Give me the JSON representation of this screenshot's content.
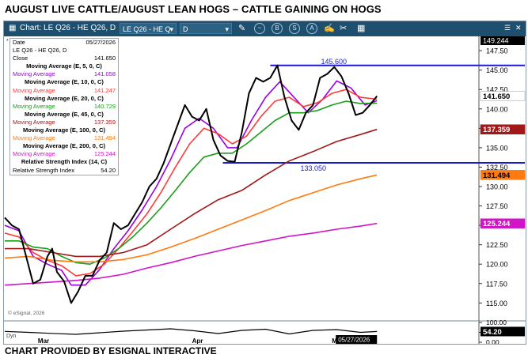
{
  "title": "AUGUST LIVE CATTLE/AUGUST LEAN HOGS –  CATTLE GAINING ON HOGS",
  "footer": "CHART PROVIDED BY ESIGNAL INTERACTIVE",
  "toolbar": {
    "chart_label": "Chart: LE Q26 - HE Q26, D",
    "symbol_value": "LE Q26 - HE Q",
    "interval_value": "D",
    "icons": [
      "pencil-icon",
      "wave-icon",
      "b-icon",
      "s-icon",
      "a-icon",
      "doc-edit-icon",
      "scissors-icon",
      "grid-icon"
    ]
  },
  "legend": {
    "date_label": "Date",
    "date_value": "05/27/2026",
    "symbol": "LE Q26 - HE Q26, D",
    "close_label": "Close",
    "close_value": "141.650",
    "rows": [
      {
        "head": "Moving Average (E, 5, 0, C)",
        "label": "Moving Average",
        "value": "141.058",
        "color": "#9b00e0"
      },
      {
        "head": "Moving Average (E, 10, 0, C)",
        "label": "Moving Average",
        "value": "141.247",
        "color": "#ff3a3a"
      },
      {
        "head": "Moving Average (E, 20, 0, C)",
        "label": "Moving Average",
        "value": "140.729",
        "color": "#1a9e1a"
      },
      {
        "head": "Moving Average (E, 45, 0, C)",
        "label": "Moving Average",
        "value": "137.359",
        "color": "#a01818"
      },
      {
        "head": "Moving Average (E, 100, 0, C)",
        "label": "Moving Average",
        "value": "131.494",
        "color": "#ff7a10"
      },
      {
        "head": "Moving Average (E, 200, 0, C)",
        "label": "Moving Average",
        "value": "125.244",
        "color": "#d214c8"
      }
    ],
    "rsi_head": "Relative Strength Index (14, C)",
    "rsi_label": "Relative Strength Index",
    "rsi_value": "54.20"
  },
  "partial_label": "10)",
  "watermark": "© eSignal, 2026",
  "lower_panel_label": "Dyn",
  "chart_data": {
    "type": "line",
    "x_labels": [
      "Mar",
      "Apr",
      "May"
    ],
    "date_badge": "05/27/2026",
    "ylim": [
      113.2,
      149.244
    ],
    "y_ticks": [
      115.0,
      117.5,
      120.0,
      122.5,
      125.0,
      127.5,
      130.0,
      132.5,
      135.0,
      137.5,
      140.0,
      142.5,
      145.0,
      147.5
    ],
    "y_tick_labels": [
      "115.00",
      "117.50",
      "120.00",
      "122.50",
      "125.00",
      "127.50",
      "130.00",
      "132.50",
      "135.00",
      "137.50",
      "140.00",
      "142.50",
      "145.00",
      "147.50"
    ],
    "top_value_label": "149.244",
    "price_labels": [
      {
        "text": "141.650",
        "value": 141.65,
        "bg": "#ffffff",
        "fg": "#000000"
      },
      {
        "text": "137.359",
        "value": 137.359,
        "bg": "#a01818",
        "fg": "#ffffff"
      },
      {
        "text": "131.494",
        "value": 131.494,
        "bg": "#ff7a10",
        "fg": "#000000"
      },
      {
        "text": "125.244",
        "value": 125.244,
        "bg": "#d214c8",
        "fg": "#ffffff"
      }
    ],
    "levels": [
      {
        "label": "145.600",
        "value": 145.6,
        "x_start": 0.56,
        "x_end": 1.0
      },
      {
        "label": "133.050",
        "value": 133.05,
        "x_start": 0.46,
        "x_end": 1.0
      }
    ],
    "series": [
      {
        "name": "Close",
        "color": "#000000",
        "width": 2,
        "values": [
          [
            0,
            126
          ],
          [
            0.015,
            125
          ],
          [
            0.03,
            124.5
          ],
          [
            0.045,
            121
          ],
          [
            0.06,
            117.5
          ],
          [
            0.075,
            118
          ],
          [
            0.09,
            121
          ],
          [
            0.1,
            122
          ],
          [
            0.11,
            119
          ],
          [
            0.125,
            117.8
          ],
          [
            0.14,
            115
          ],
          [
            0.155,
            116.5
          ],
          [
            0.17,
            118.5
          ],
          [
            0.185,
            118.5
          ],
          [
            0.2,
            120.5
          ],
          [
            0.215,
            121.5
          ],
          [
            0.23,
            125.3
          ],
          [
            0.245,
            124.5
          ],
          [
            0.26,
            125
          ],
          [
            0.275,
            126.5
          ],
          [
            0.29,
            128
          ],
          [
            0.305,
            130
          ],
          [
            0.32,
            131
          ],
          [
            0.335,
            133
          ],
          [
            0.35,
            135.5
          ],
          [
            0.365,
            138
          ],
          [
            0.38,
            140.5
          ],
          [
            0.395,
            139
          ],
          [
            0.41,
            138.5
          ],
          [
            0.425,
            140
          ],
          [
            0.44,
            136
          ],
          [
            0.455,
            134
          ],
          [
            0.47,
            133.3
          ],
          [
            0.485,
            133.2
          ],
          [
            0.5,
            137
          ],
          [
            0.515,
            142
          ],
          [
            0.53,
            144
          ],
          [
            0.545,
            143.5
          ],
          [
            0.56,
            144
          ],
          [
            0.575,
            145.6
          ],
          [
            0.59,
            141.5
          ],
          [
            0.605,
            138.5
          ],
          [
            0.62,
            137.3
          ],
          [
            0.635,
            139.5
          ],
          [
            0.65,
            140.5
          ],
          [
            0.665,
            144
          ],
          [
            0.68,
            144.5
          ],
          [
            0.695,
            145.4
          ],
          [
            0.71,
            144.2
          ],
          [
            0.725,
            142
          ],
          [
            0.74,
            139.2
          ],
          [
            0.755,
            139.5
          ],
          [
            0.77,
            140.5
          ],
          [
            0.785,
            141.65
          ]
        ]
      },
      {
        "name": "Moving Average (E, 5, 0, C)",
        "color": "#9b00e0",
        "width": 1.6,
        "values": [
          [
            0,
            125
          ],
          [
            0.03,
            124.3
          ],
          [
            0.06,
            121
          ],
          [
            0.09,
            120
          ],
          [
            0.12,
            119.2
          ],
          [
            0.14,
            117.3
          ],
          [
            0.17,
            117.3
          ],
          [
            0.2,
            119.3
          ],
          [
            0.23,
            122
          ],
          [
            0.26,
            124.3
          ],
          [
            0.29,
            127
          ],
          [
            0.32,
            130
          ],
          [
            0.35,
            133.5
          ],
          [
            0.38,
            137.5
          ],
          [
            0.41,
            138.8
          ],
          [
            0.44,
            137.5
          ],
          [
            0.47,
            135
          ],
          [
            0.49,
            135
          ],
          [
            0.52,
            138.5
          ],
          [
            0.55,
            141.5
          ],
          [
            0.58,
            143.5
          ],
          [
            0.61,
            141.5
          ],
          [
            0.64,
            139.5
          ],
          [
            0.67,
            141.2
          ],
          [
            0.7,
            143.6
          ],
          [
            0.73,
            142.7
          ],
          [
            0.76,
            140.5
          ],
          [
            0.785,
            141.058
          ]
        ]
      },
      {
        "name": "Moving Average (E, 10, 0, C)",
        "color": "#ff3a3a",
        "width": 1.6,
        "values": [
          [
            0,
            124
          ],
          [
            0.03,
            123.5
          ],
          [
            0.06,
            121.5
          ],
          [
            0.09,
            120.5
          ],
          [
            0.12,
            119.8
          ],
          [
            0.15,
            118.5
          ],
          [
            0.18,
            118.8
          ],
          [
            0.21,
            120
          ],
          [
            0.24,
            122
          ],
          [
            0.27,
            124.2
          ],
          [
            0.3,
            126.5
          ],
          [
            0.33,
            129.3
          ],
          [
            0.36,
            132.5
          ],
          [
            0.39,
            135.5
          ],
          [
            0.42,
            137.5
          ],
          [
            0.45,
            136.8
          ],
          [
            0.48,
            135.5
          ],
          [
            0.51,
            136.5
          ],
          [
            0.54,
            139
          ],
          [
            0.57,
            141
          ],
          [
            0.6,
            141.5
          ],
          [
            0.63,
            140.3
          ],
          [
            0.66,
            140.8
          ],
          [
            0.69,
            142
          ],
          [
            0.72,
            142.5
          ],
          [
            0.75,
            141.5
          ],
          [
            0.785,
            141.247
          ]
        ]
      },
      {
        "name": "Moving Average (E, 20, 0, C)",
        "color": "#1a9e1a",
        "width": 1.6,
        "values": [
          [
            0,
            123
          ],
          [
            0.03,
            123
          ],
          [
            0.06,
            122.2
          ],
          [
            0.09,
            122
          ],
          [
            0.12,
            121
          ],
          [
            0.15,
            120.2
          ],
          [
            0.18,
            120
          ],
          [
            0.21,
            120.8
          ],
          [
            0.24,
            122
          ],
          [
            0.27,
            123.5
          ],
          [
            0.3,
            125.3
          ],
          [
            0.33,
            127.3
          ],
          [
            0.36,
            129.5
          ],
          [
            0.39,
            131.8
          ],
          [
            0.42,
            133.8
          ],
          [
            0.45,
            134.3
          ],
          [
            0.48,
            134.3
          ],
          [
            0.51,
            135.5
          ],
          [
            0.54,
            137
          ],
          [
            0.57,
            138.5
          ],
          [
            0.6,
            139.5
          ],
          [
            0.63,
            139.5
          ],
          [
            0.66,
            139.8
          ],
          [
            0.69,
            140.5
          ],
          [
            0.72,
            141
          ],
          [
            0.75,
            140.7
          ],
          [
            0.785,
            140.729
          ]
        ]
      },
      {
        "name": "Moving Average (E, 45, 0, C)",
        "color": "#a01818",
        "width": 1.6,
        "values": [
          [
            0,
            122
          ],
          [
            0.05,
            122
          ],
          [
            0.1,
            121.5
          ],
          [
            0.15,
            121
          ],
          [
            0.2,
            121
          ],
          [
            0.25,
            121.5
          ],
          [
            0.3,
            122.5
          ],
          [
            0.35,
            124.5
          ],
          [
            0.4,
            126.5
          ],
          [
            0.45,
            128.3
          ],
          [
            0.5,
            129.5
          ],
          [
            0.55,
            131.5
          ],
          [
            0.6,
            133.3
          ],
          [
            0.65,
            134.5
          ],
          [
            0.7,
            135.8
          ],
          [
            0.75,
            136.7
          ],
          [
            0.785,
            137.359
          ]
        ]
      },
      {
        "name": "Moving Average (E, 100, 0, C)",
        "color": "#ff7a10",
        "width": 1.6,
        "values": [
          [
            0,
            120.8
          ],
          [
            0.05,
            121
          ],
          [
            0.1,
            120.5
          ],
          [
            0.15,
            120.3
          ],
          [
            0.2,
            120.3
          ],
          [
            0.25,
            120.6
          ],
          [
            0.3,
            121.2
          ],
          [
            0.35,
            122.2
          ],
          [
            0.4,
            123.3
          ],
          [
            0.45,
            124.5
          ],
          [
            0.5,
            125.7
          ],
          [
            0.55,
            126.9
          ],
          [
            0.6,
            128.2
          ],
          [
            0.65,
            129.2
          ],
          [
            0.7,
            130.2
          ],
          [
            0.75,
            131
          ],
          [
            0.785,
            131.494
          ]
        ]
      },
      {
        "name": "Moving Average (E, 200, 0, C)",
        "color": "#d214c8",
        "width": 1.6,
        "values": [
          [
            0,
            117.3
          ],
          [
            0.05,
            117.5
          ],
          [
            0.1,
            117.7
          ],
          [
            0.15,
            117.9
          ],
          [
            0.2,
            118.2
          ],
          [
            0.25,
            118.7
          ],
          [
            0.3,
            119.5
          ],
          [
            0.35,
            120.2
          ],
          [
            0.4,
            121
          ],
          [
            0.45,
            121.7
          ],
          [
            0.5,
            122.4
          ],
          [
            0.55,
            123
          ],
          [
            0.6,
            123.6
          ],
          [
            0.65,
            124
          ],
          [
            0.7,
            124.5
          ],
          [
            0.75,
            124.9
          ],
          [
            0.785,
            125.244
          ]
        ]
      }
    ],
    "rsi": {
      "name": "Relative Strength Index (14, C)",
      "ylim": [
        0,
        100
      ],
      "ticks": [
        100,
        50,
        0
      ],
      "tick_labels": [
        "100.00",
        "50.00",
        "0.00"
      ],
      "value_label": "54.20",
      "values": [
        [
          0,
          55
        ],
        [
          0.05,
          50
        ],
        [
          0.1,
          45
        ],
        [
          0.15,
          40
        ],
        [
          0.2,
          48
        ],
        [
          0.25,
          56
        ],
        [
          0.3,
          62
        ],
        [
          0.35,
          68
        ],
        [
          0.4,
          58
        ],
        [
          0.45,
          44
        ],
        [
          0.5,
          60
        ],
        [
          0.55,
          66
        ],
        [
          0.6,
          42
        ],
        [
          0.65,
          60
        ],
        [
          0.7,
          64
        ],
        [
          0.75,
          50
        ],
        [
          0.785,
          54.2
        ]
      ]
    }
  }
}
